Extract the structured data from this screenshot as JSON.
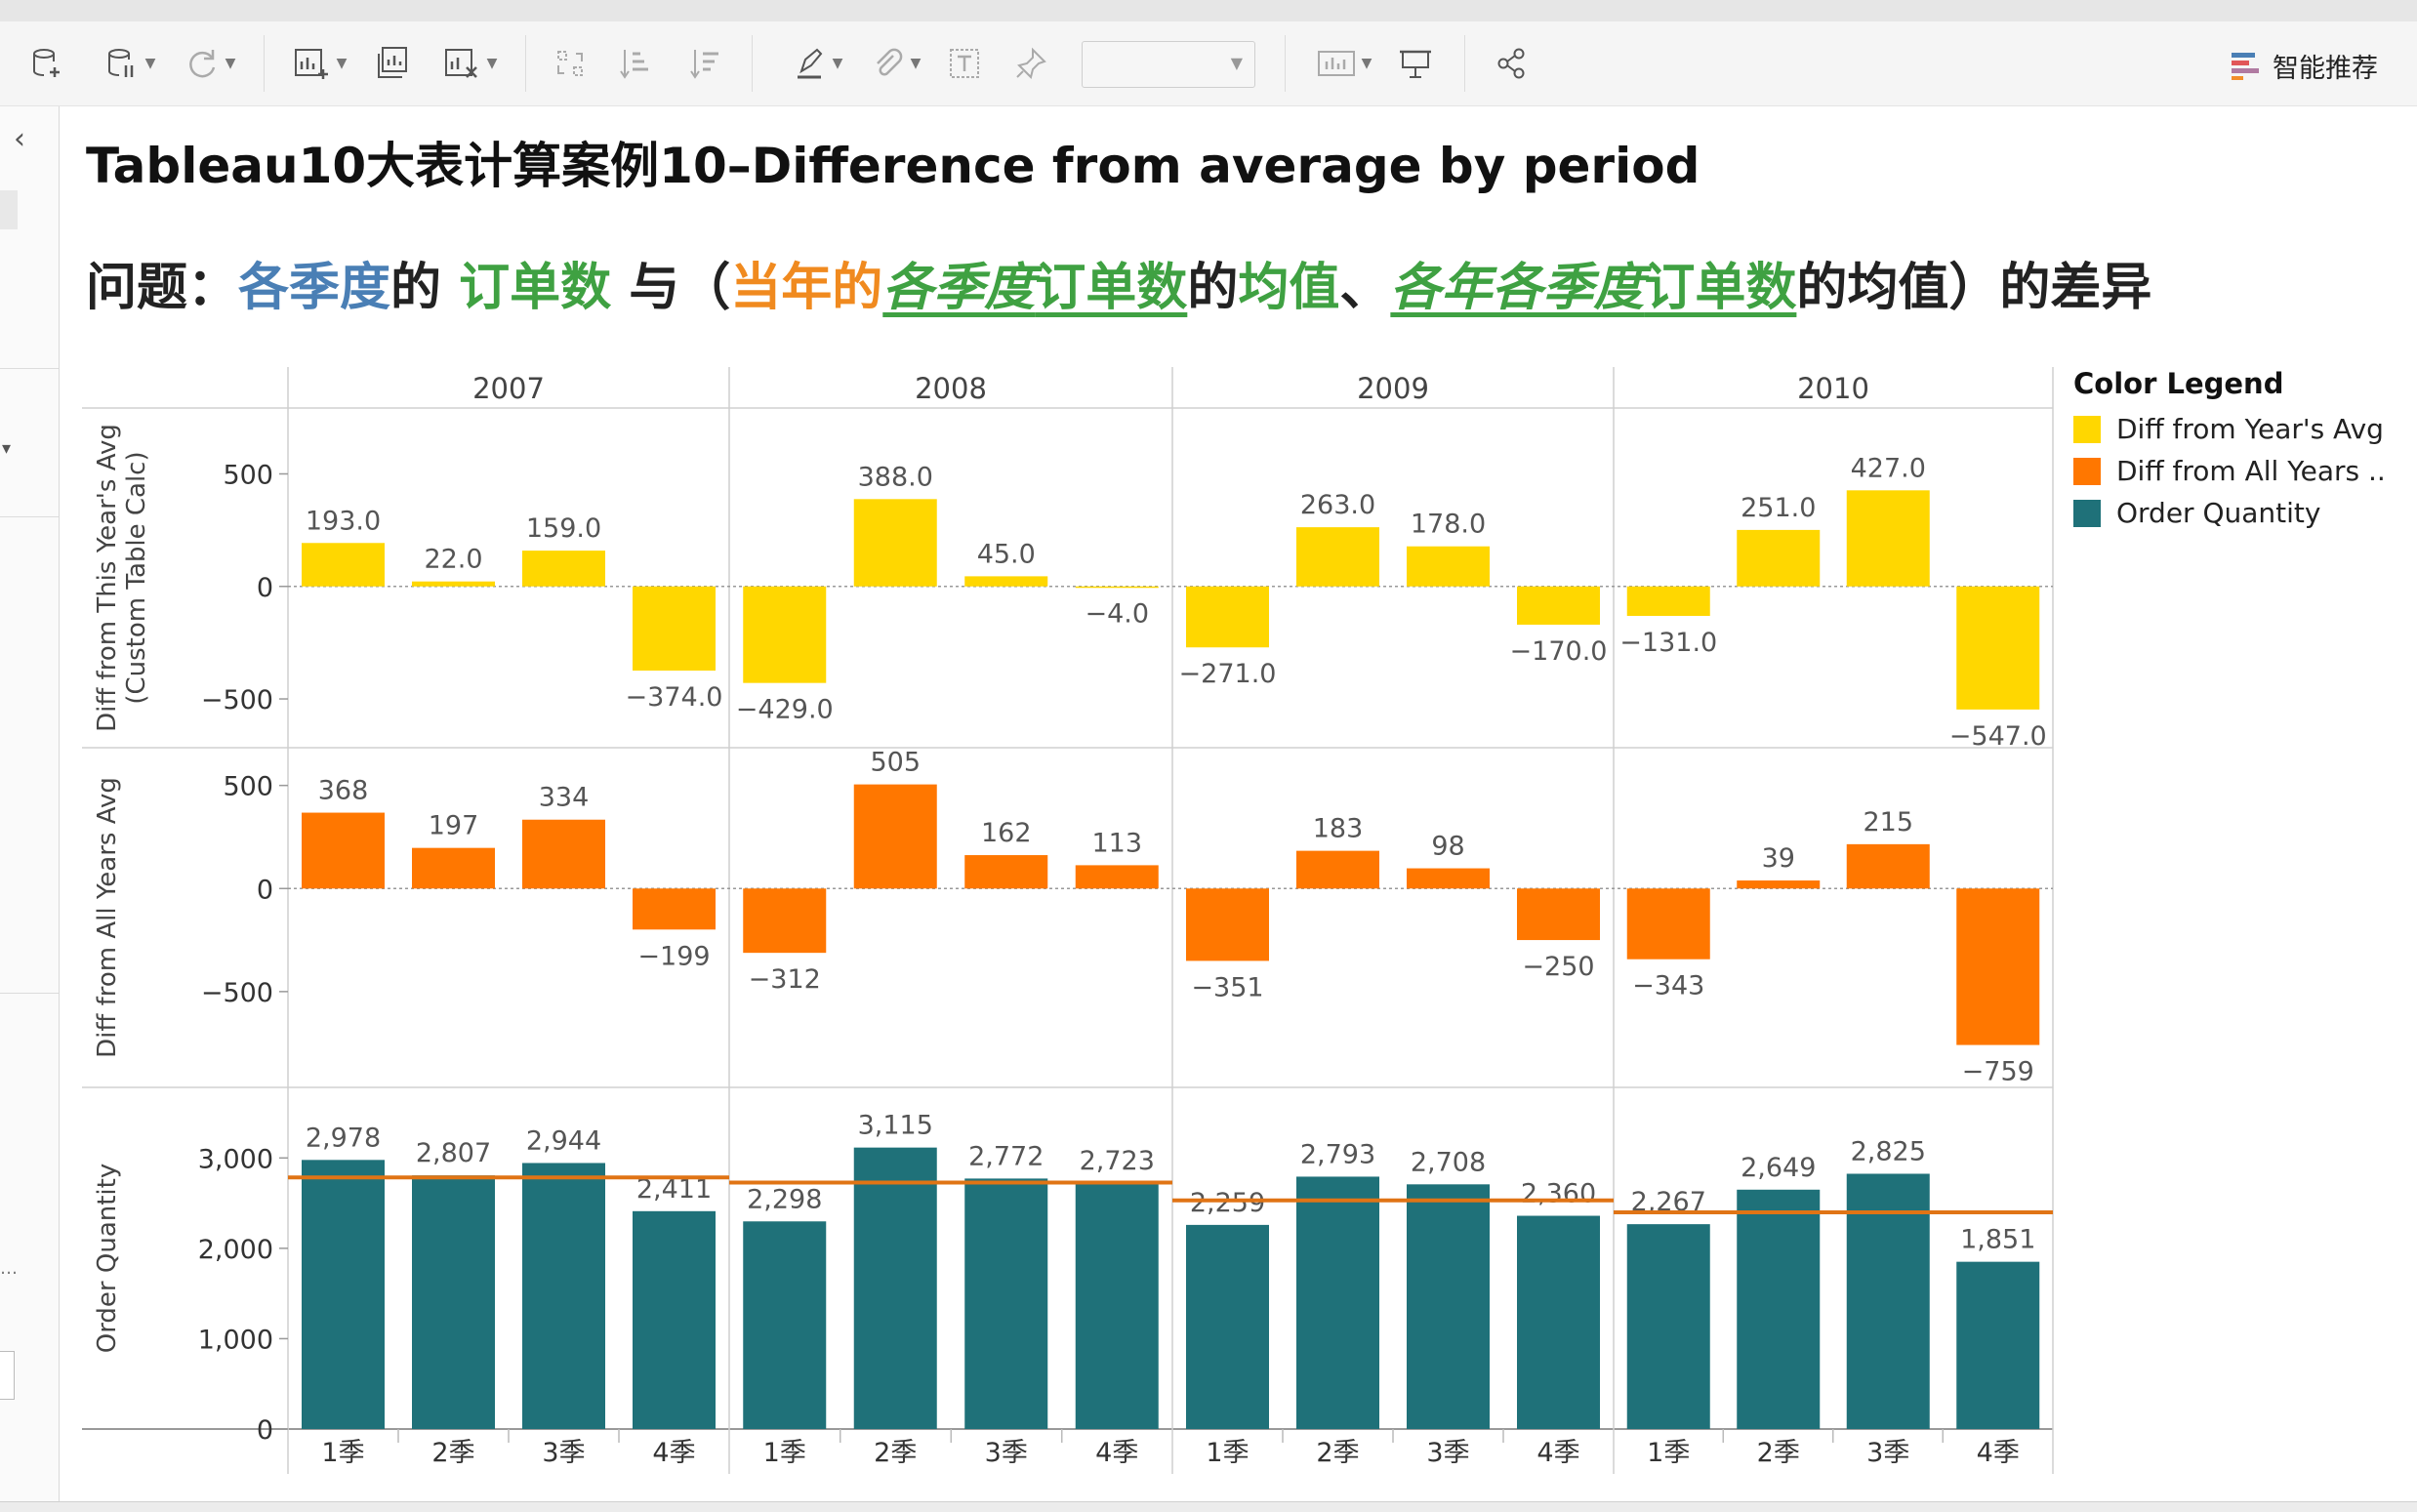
{
  "title": "Tableau10大表计算案例10–Difference from average by period",
  "question": {
    "p1": "问题：",
    "p2": "各季度",
    "p3": "的 ",
    "p4": "订单数",
    "p5": " 与（",
    "p6": "当年的",
    "p7": "各季度",
    "p8": "订单数",
    "p9": "的",
    "p10": "均值",
    "p11": "、",
    "p12": "各年各季度",
    "p13": "订单数",
    "p14": "的均值）的差异"
  },
  "toolbar": {
    "smart_label": "智能推荐",
    "icons": [
      "new-datasource-icon",
      "extract-icon",
      "refresh-icon",
      "add-sheet-icon",
      "duplicate-sheet-icon",
      "clear-sheet-icon",
      "swap-icon",
      "sort-ascending-icon",
      "sort-descending-icon",
      "highlight-icon",
      "clip-icon",
      "label-icon",
      "pin-icon",
      "show-me-icon",
      "presentation-icon",
      "share-icon"
    ]
  },
  "colors": {
    "year_avg": "#FFD700",
    "all_years": "#FF7700",
    "order_qty": "#1F7179",
    "ref_line": "#E07415",
    "accent_blue": "#4A7FB5",
    "accent_green": "#3FA142",
    "accent_orange": "#F08A1F"
  },
  "legend": {
    "title": "Color Legend",
    "items": [
      "Diff from Year's Avg",
      "Diff from All Years ..",
      "Order Quantity"
    ]
  },
  "chart_data": {
    "type": "bar",
    "years": [
      "2007",
      "2008",
      "2009",
      "2010"
    ],
    "quarters": [
      "1季",
      "2季",
      "3季",
      "4季"
    ],
    "rows": [
      {
        "key": "year_avg",
        "ylabel": "Diff from This Year's Avg",
        "ylabel2": "(Custom Table Calc)",
        "ylim": [
          -630,
          680
        ],
        "ticks": [
          {
            "v": 500,
            "t": "500"
          },
          {
            "v": 0,
            "t": "0"
          },
          {
            "v": -500,
            "t": "−500"
          }
        ],
        "zero_line": true,
        "values": [
          193,
          22,
          159,
          -374,
          -429,
          388,
          45,
          -4,
          -271,
          263,
          178,
          -170,
          -131,
          251,
          427,
          -547
        ],
        "labels": [
          "193.0",
          "22.0",
          "159.0",
          "−374.0",
          "−429.0",
          "388.0",
          "45.0",
          "−4.0",
          "−271.0",
          "263.0",
          "178.0",
          "−170.0",
          "−131.0",
          "251.0",
          "427.0",
          "−547.0"
        ]
      },
      {
        "key": "all_years",
        "ylabel": "Diff from All Years Avg",
        "ylim": [
          -870,
          560
        ],
        "ticks": [
          {
            "v": 500,
            "t": "500"
          },
          {
            "v": 0,
            "t": "0"
          },
          {
            "v": -500,
            "t": "−500"
          }
        ],
        "zero_line": true,
        "values": [
          368,
          197,
          334,
          -199,
          -312,
          505,
          162,
          113,
          -351,
          183,
          98,
          -250,
          -343,
          39,
          215,
          -759
        ],
        "labels": [
          "368",
          "197",
          "334",
          "−199",
          "−312",
          "505",
          "162",
          "113",
          "−351",
          "183",
          "98",
          "−250",
          "−343",
          "39",
          "215",
          "−759"
        ]
      },
      {
        "key": "order_qty",
        "ylabel": "Order Quantity",
        "ylim": [
          0,
          3500
        ],
        "ticks": [
          {
            "v": 3000,
            "t": "3,000"
          },
          {
            "v": 2000,
            "t": "2,000"
          },
          {
            "v": 1000,
            "t": "1,000"
          },
          {
            "v": 0,
            "t": "0"
          }
        ],
        "zero_line": false,
        "values": [
          2978,
          2807,
          2944,
          2411,
          2298,
          3115,
          2772,
          2723,
          2259,
          2793,
          2708,
          2360,
          2267,
          2649,
          2825,
          1851
        ],
        "labels": [
          "2,978",
          "2,807",
          "2,944",
          "2,411",
          "2,298",
          "3,115",
          "2,772",
          "2,723",
          "2,259",
          "2,793",
          "2,708",
          "2,360",
          "2,267",
          "2,649",
          "2,825",
          "1,851"
        ],
        "ref_lines": [
          2785,
          2727,
          2530,
          2398
        ]
      }
    ]
  }
}
